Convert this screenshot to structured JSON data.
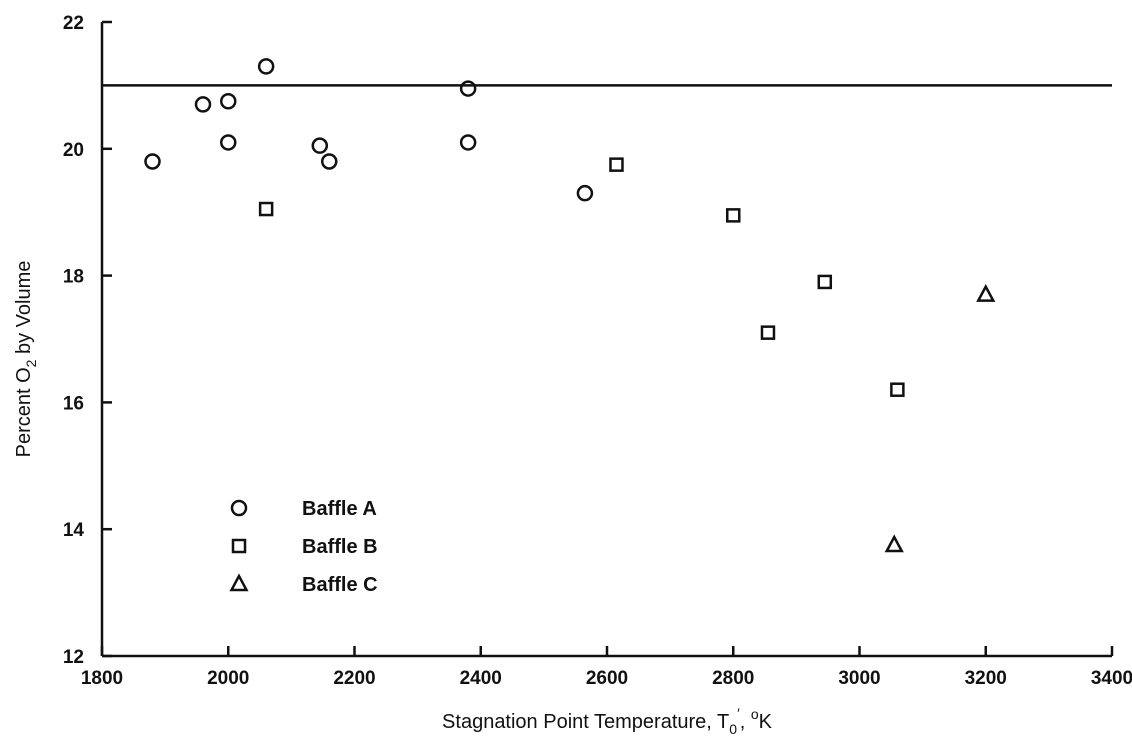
{
  "chart_data": {
    "type": "scatter",
    "xlabel": {
      "text": "Stagnation Point Temperature, T",
      "sub": "0",
      "prime": "′",
      "unit_sep": ", ",
      "unit_sup": "o",
      "unit": "K"
    },
    "ylabel": {
      "prefix": "Percent O",
      "sub": "2",
      "suffix": " by Volume"
    },
    "xlim": [
      1800,
      3400
    ],
    "ylim": [
      12,
      22
    ],
    "xticks": [
      1800,
      2000,
      2200,
      2400,
      2600,
      2800,
      3000,
      3200,
      3400
    ],
    "yticks": [
      12,
      14,
      16,
      18,
      20,
      22
    ],
    "reference_line": {
      "y": 21.0
    },
    "grid": false,
    "legend_placement": "lower-left",
    "series": [
      {
        "name": "Baffle A",
        "marker": "circle",
        "points": [
          [
            1880,
            19.8
          ],
          [
            1960,
            20.7
          ],
          [
            2000,
            20.75
          ],
          [
            2000,
            20.1
          ],
          [
            2060,
            21.3
          ],
          [
            2145,
            20.05
          ],
          [
            2160,
            19.8
          ],
          [
            2380,
            20.95
          ],
          [
            2380,
            20.1
          ],
          [
            2565,
            19.3
          ]
        ]
      },
      {
        "name": "Baffle B",
        "marker": "square",
        "points": [
          [
            2060,
            19.05
          ],
          [
            2615,
            19.75
          ],
          [
            2800,
            18.95
          ],
          [
            2855,
            17.1
          ],
          [
            2945,
            17.9
          ],
          [
            3060,
            16.2
          ]
        ]
      },
      {
        "name": "Baffle C",
        "marker": "triangle",
        "points": [
          [
            3055,
            13.75
          ],
          [
            3200,
            17.7
          ]
        ]
      }
    ]
  }
}
